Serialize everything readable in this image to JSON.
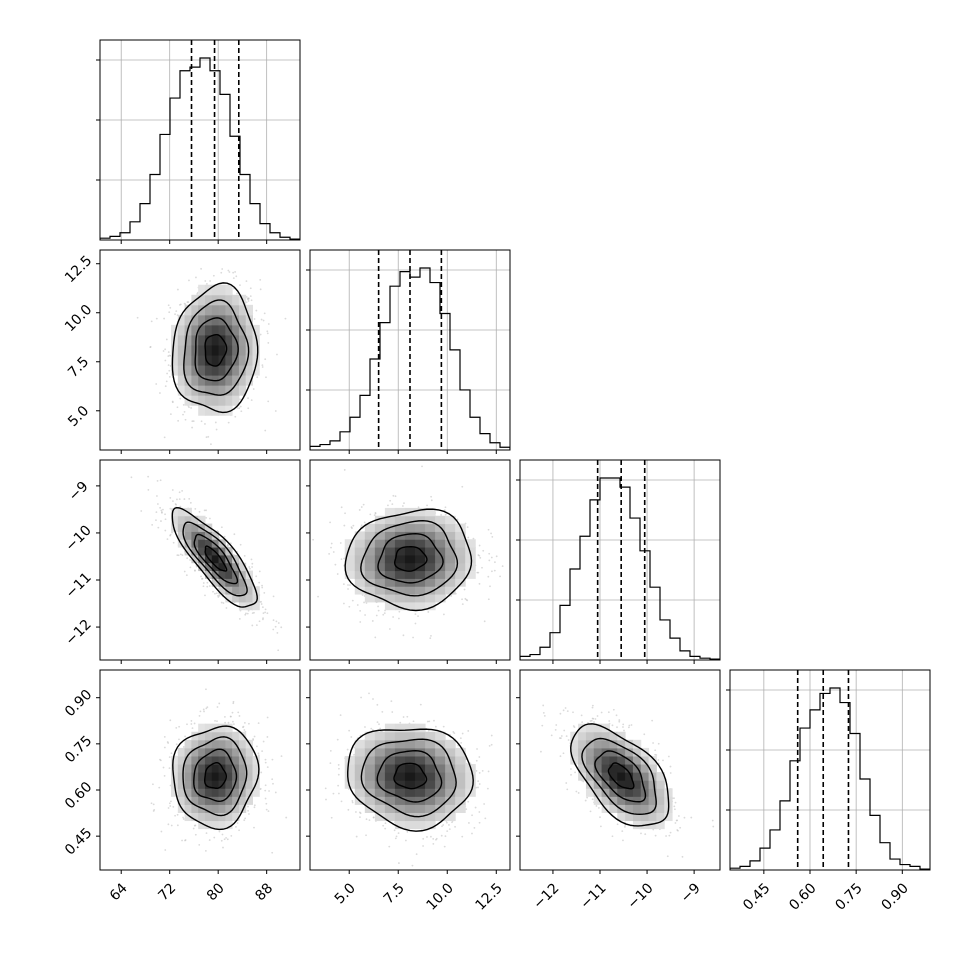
{
  "chart_data": {
    "type": "corner",
    "title": "",
    "parameters": [
      {
        "index": 0,
        "ticks": [
          64,
          72,
          80,
          88
        ],
        "tick_labels": [
          "64",
          "72",
          "80",
          "88"
        ],
        "range": [
          60.5,
          93.5
        ],
        "mean": 79.5,
        "sigma": 3.5,
        "quantiles": [
          75.6,
          79.4,
          83.4
        ]
      },
      {
        "index": 1,
        "ticks": [
          5.0,
          7.5,
          10.0,
          12.5
        ],
        "tick_labels": [
          "5.0",
          "7.5",
          "10.0",
          "12.5"
        ],
        "range": [
          3.0,
          13.2
        ],
        "mean": 8.1,
        "sigma": 1.6,
        "quantiles": [
          6.5,
          8.1,
          9.7
        ]
      },
      {
        "index": 2,
        "ticks": [
          -12,
          -11,
          -10,
          -9
        ],
        "tick_labels": [
          "−12",
          "−11",
          "−10",
          "−9"
        ],
        "range": [
          -12.7,
          -8.45
        ],
        "mean": -10.55,
        "sigma": 0.52,
        "quantiles": [
          -11.05,
          -10.55,
          -10.05
        ]
      },
      {
        "index": 3,
        "ticks": [
          0.45,
          0.6,
          0.75,
          0.9
        ],
        "tick_labels": [
          "0.45",
          "0.60",
          "0.75",
          "0.90"
        ],
        "range": [
          0.34,
          0.99
        ],
        "mean": 0.645,
        "sigma": 0.082,
        "quantiles": [
          0.56,
          0.643,
          0.725
        ]
      }
    ],
    "correlations": {
      "1-0": 0.05,
      "2-0": -0.82,
      "2-1": 0.05,
      "3-0": 0.05,
      "3-1": -0.08,
      "3-2": -0.55
    },
    "histograms": [
      [
        0.01,
        0.02,
        0.04,
        0.1,
        0.2,
        0.36,
        0.58,
        0.78,
        0.93,
        0.95,
        1.0,
        0.93,
        0.8,
        0.57,
        0.36,
        0.2,
        0.09,
        0.04,
        0.015,
        0.005
      ],
      [
        0.02,
        0.03,
        0.05,
        0.1,
        0.18,
        0.3,
        0.5,
        0.7,
        0.9,
        0.98,
        0.95,
        1.0,
        0.92,
        0.75,
        0.55,
        0.33,
        0.18,
        0.09,
        0.04,
        0.015
      ],
      [
        0.02,
        0.03,
        0.07,
        0.15,
        0.3,
        0.5,
        0.68,
        0.88,
        1.0,
        1.0,
        0.95,
        0.78,
        0.6,
        0.4,
        0.22,
        0.12,
        0.05,
        0.02,
        0.01,
        0.005
      ],
      [
        0.01,
        0.02,
        0.05,
        0.12,
        0.22,
        0.38,
        0.6,
        0.78,
        0.88,
        0.97,
        1.0,
        0.92,
        0.75,
        0.5,
        0.3,
        0.15,
        0.06,
        0.03,
        0.02,
        0.005
      ]
    ],
    "contour_levels_sigma": [
      0.5,
      1.0,
      1.5,
      2.0
    ],
    "grid": true
  }
}
